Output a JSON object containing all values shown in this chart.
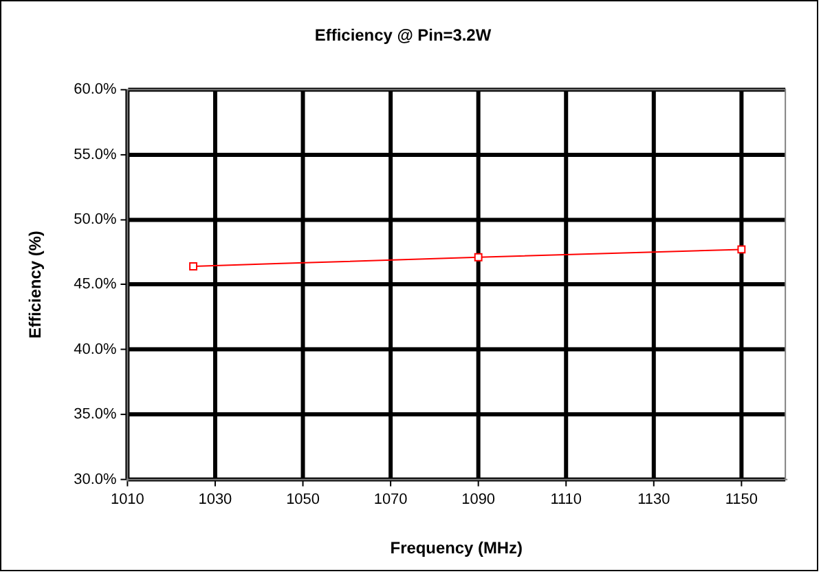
{
  "chart_data": {
    "type": "line",
    "title": "Efficiency @ Pin=3.2W",
    "xlabel": "Frequency (MHz)",
    "ylabel": "Efficiency (%)",
    "x": [
      1025,
      1090,
      1150
    ],
    "series": [
      {
        "color": "#ff0000",
        "values": [
          46.4,
          47.1,
          47.7
        ]
      }
    ],
    "xlim": [
      1010,
      1160
    ],
    "xticks": [
      1010,
      1030,
      1050,
      1070,
      1090,
      1110,
      1130,
      1150
    ],
    "ylim": [
      30,
      60
    ],
    "yticks": [
      {
        "value": 30,
        "label": "30.0%"
      },
      {
        "value": 35,
        "label": "35.0%"
      },
      {
        "value": 40,
        "label": "40.0%"
      },
      {
        "value": 45,
        "label": "45.0%"
      },
      {
        "value": 50,
        "label": "50.0%"
      },
      {
        "value": 55,
        "label": "55.0%"
      },
      {
        "value": 60,
        "label": "60.0%"
      }
    ],
    "grid": true,
    "legend": false,
    "marker": "square",
    "line_style": "solid"
  }
}
